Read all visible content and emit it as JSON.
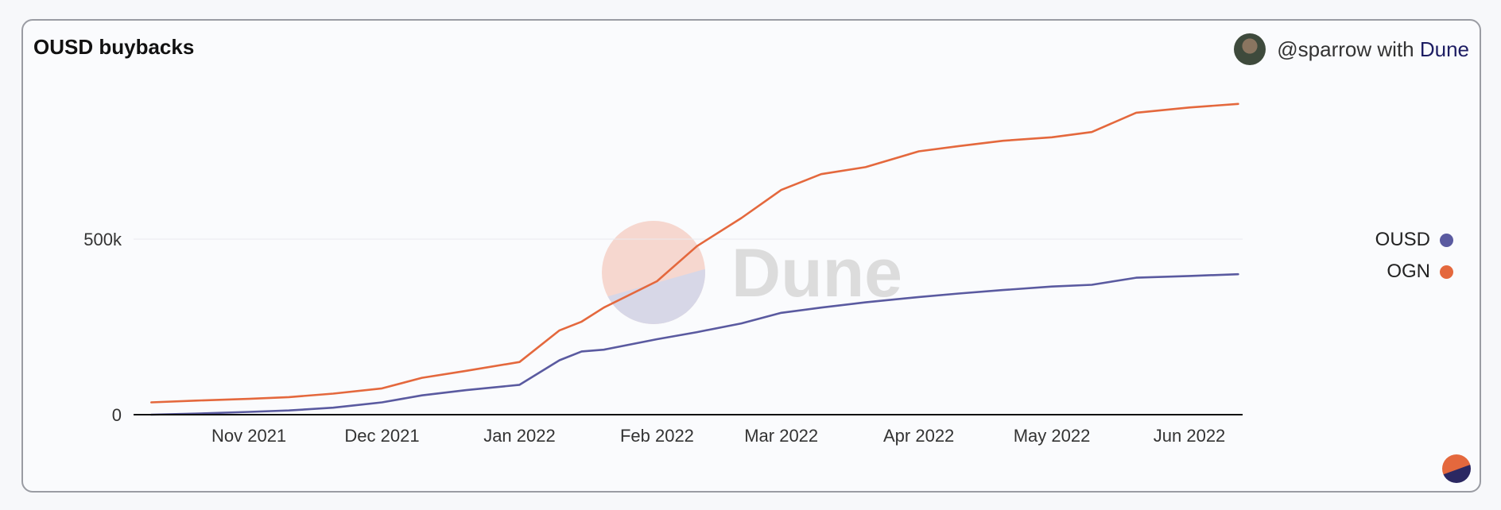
{
  "card": {
    "title": "OUSD buybacks",
    "attribution": {
      "handle": "@sparrow",
      "with_text": "with",
      "brand": "Dune"
    },
    "watermark": "Dune"
  },
  "chart_data": {
    "type": "line",
    "title": "OUSD buybacks",
    "xlabel": "",
    "ylabel": "",
    "x_tick_labels": [
      "Nov 2021",
      "Dec 2021",
      "Jan 2022",
      "Feb 2022",
      "Mar 2022",
      "Apr 2022",
      "May 2022",
      "Jun 2022"
    ],
    "y_tick_labels": [
      "0",
      "500k"
    ],
    "ylim": [
      0,
      1000000
    ],
    "x": [
      "2021-10-10",
      "2021-10-20",
      "2021-11-01",
      "2021-11-10",
      "2021-11-20",
      "2021-12-01",
      "2021-12-10",
      "2021-12-20",
      "2022-01-01",
      "2022-01-10",
      "2022-01-15",
      "2022-01-20",
      "2022-02-01",
      "2022-02-10",
      "2022-02-20",
      "2022-03-01",
      "2022-03-10",
      "2022-03-20",
      "2022-04-01",
      "2022-04-10",
      "2022-04-20",
      "2022-05-01",
      "2022-05-10",
      "2022-05-20",
      "2022-06-01",
      "2022-06-12"
    ],
    "series": [
      {
        "name": "OUSD",
        "color": "#5a5aa0",
        "values": [
          0,
          3000,
          8000,
          12000,
          20000,
          35000,
          55000,
          70000,
          85000,
          155000,
          180000,
          185000,
          215000,
          235000,
          260000,
          290000,
          305000,
          320000,
          335000,
          345000,
          355000,
          365000,
          370000,
          390000,
          395000,
          400000
        ]
      },
      {
        "name": "OGN",
        "color": "#e4683d",
        "values": [
          35000,
          40000,
          45000,
          50000,
          60000,
          75000,
          105000,
          125000,
          150000,
          240000,
          265000,
          305000,
          380000,
          480000,
          560000,
          640000,
          685000,
          705000,
          750000,
          765000,
          780000,
          790000,
          805000,
          860000,
          875000,
          885000
        ]
      }
    ],
    "legend": "right",
    "grid": true
  },
  "colors": {
    "ousd": "#5a5aa0",
    "ogn": "#e4683d",
    "axis": "#111111",
    "grid": "#e9eaee"
  }
}
